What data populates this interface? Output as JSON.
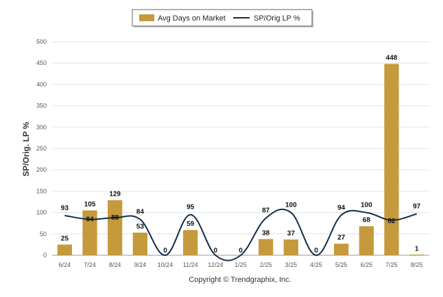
{
  "chart_data": {
    "type": "bar",
    "categories": [
      "6/24",
      "7/24",
      "8/24",
      "9/24",
      "10/24",
      "11/24",
      "12/24",
      "1/25",
      "2/25",
      "3/25",
      "4/25",
      "5/25",
      "6/25",
      "7/25",
      "8/25"
    ],
    "series": [
      {
        "name": "Avg Days on Market",
        "type": "bar",
        "color": "#c49a3c",
        "values": [
          25,
          105,
          129,
          53,
          0,
          59,
          0,
          0,
          38,
          37,
          0,
          27,
          68,
          448,
          1
        ]
      },
      {
        "name": "SP/Orig LP %",
        "type": "line",
        "color": "#0f2a4a",
        "values": [
          93,
          84,
          88,
          84,
          null,
          95,
          null,
          null,
          87,
          100,
          null,
          94,
          100,
          82,
          97
        ]
      }
    ],
    "ylabel": "SP/Orig. LP %",
    "ylim": [
      0,
      500
    ],
    "yticks": [
      0,
      50,
      100,
      150,
      200,
      250,
      300,
      350,
      400,
      450,
      500
    ],
    "grid": true,
    "legend_position": "top-center"
  },
  "footer": {
    "copyright": "Copyright © Trendgraphix, Inc."
  }
}
